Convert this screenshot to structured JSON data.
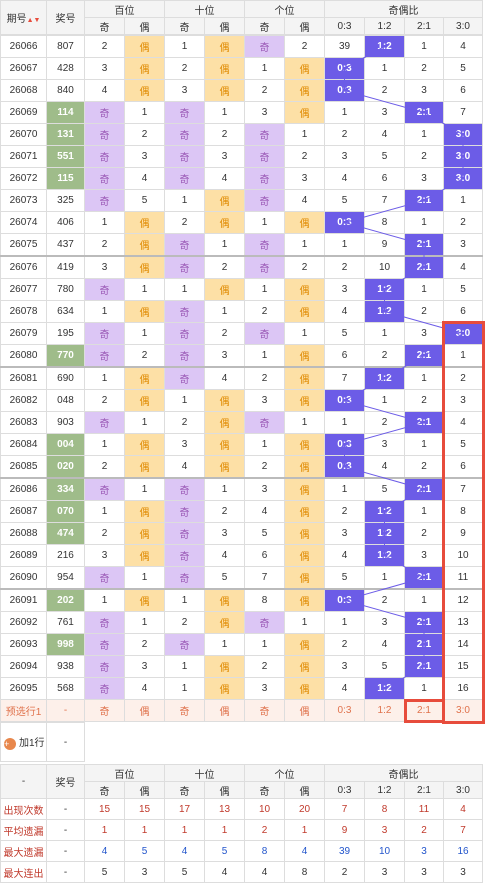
{
  "header": {
    "col_period": "期号",
    "sort_icon": "▲▼",
    "col_prize": "奖号",
    "groups": [
      "百位",
      "十位",
      "个位",
      "奇偶比"
    ],
    "sub": [
      "奇",
      "偶"
    ],
    "ratio": [
      "0:3",
      "1:2",
      "2:1",
      "3:0"
    ]
  },
  "rows": [
    {
      "p": "26066",
      "n": "807",
      "hl": false,
      "pos": [
        [
          "2",
          "偶"
        ],
        [
          "1",
          "偶"
        ],
        [
          "奇",
          "2"
        ]
      ],
      "ratio": [
        "39",
        "1:2",
        "1",
        "4"
      ],
      "ri": 1
    },
    {
      "p": "26067",
      "n": "428",
      "hl": false,
      "pos": [
        [
          "3",
          "偶"
        ],
        [
          "2",
          "偶"
        ],
        [
          "1",
          "偶"
        ]
      ],
      "ratio": [
        "0:3",
        "1",
        "2",
        "5"
      ],
      "ri": 0
    },
    {
      "p": "26068",
      "n": "840",
      "hl": false,
      "pos": [
        [
          "4",
          "偶"
        ],
        [
          "3",
          "偶"
        ],
        [
          "2",
          "偶"
        ]
      ],
      "ratio": [
        "0:3",
        "2",
        "3",
        "6"
      ],
      "ri": 0
    },
    {
      "p": "26069",
      "n": "114",
      "hl": true,
      "pos": [
        [
          "奇",
          "1"
        ],
        [
          "奇",
          "1"
        ],
        [
          "3",
          "偶"
        ]
      ],
      "ratio": [
        "1",
        "3",
        "2:1",
        "7"
      ],
      "ri": 2
    },
    {
      "p": "26070",
      "n": "131",
      "hl": true,
      "pos": [
        [
          "奇",
          "2"
        ],
        [
          "奇",
          "2"
        ],
        [
          "奇",
          "1"
        ]
      ],
      "ratio": [
        "2",
        "4",
        "1",
        "3:0"
      ],
      "ri": 3
    },
    {
      "p": "26071",
      "n": "551",
      "hl": true,
      "pos": [
        [
          "奇",
          "3"
        ],
        [
          "奇",
          "3"
        ],
        [
          "奇",
          "2"
        ]
      ],
      "ratio": [
        "3",
        "5",
        "2",
        "3:0"
      ],
      "ri": 3
    },
    {
      "p": "26072",
      "n": "115",
      "hl": true,
      "pos": [
        [
          "奇",
          "4"
        ],
        [
          "奇",
          "4"
        ],
        [
          "奇",
          "3"
        ]
      ],
      "ratio": [
        "4",
        "6",
        "3",
        "3:0"
      ],
      "ri": 3
    },
    {
      "p": "26073",
      "n": "325",
      "hl": false,
      "pos": [
        [
          "奇",
          "5"
        ],
        [
          "1",
          "偶"
        ],
        [
          "奇",
          "4"
        ]
      ],
      "ratio": [
        "5",
        "7",
        "2:1",
        "1"
      ],
      "ri": 2
    },
    {
      "p": "26074",
      "n": "406",
      "hl": false,
      "pos": [
        [
          "1",
          "偶"
        ],
        [
          "2",
          "偶"
        ],
        [
          "1",
          "偶"
        ]
      ],
      "ratio": [
        "0:3",
        "8",
        "1",
        "2"
      ],
      "ri": 0
    },
    {
      "p": "26075",
      "n": "437",
      "hl": false,
      "pos": [
        [
          "2",
          "偶"
        ],
        [
          "奇",
          "1"
        ],
        [
          "奇",
          "1"
        ]
      ],
      "ratio": [
        "1",
        "9",
        "2:1",
        "3"
      ],
      "ri": 2
    },
    {
      "p": "26076",
      "n": "419",
      "hl": false,
      "pos": [
        [
          "3",
          "偶"
        ],
        [
          "奇",
          "2"
        ],
        [
          "奇",
          "2"
        ]
      ],
      "ratio": [
        "2",
        "10",
        "2:1",
        "4"
      ],
      "ri": 2
    },
    {
      "p": "26077",
      "n": "780",
      "hl": false,
      "pos": [
        [
          "奇",
          "1"
        ],
        [
          "1",
          "偶"
        ],
        [
          "1",
          "偶"
        ]
      ],
      "ratio": [
        "3",
        "1:2",
        "1",
        "5"
      ],
      "ri": 1
    },
    {
      "p": "26078",
      "n": "634",
      "hl": false,
      "pos": [
        [
          "1",
          "偶"
        ],
        [
          "奇",
          "1"
        ],
        [
          "2",
          "偶"
        ]
      ],
      "ratio": [
        "4",
        "1:2",
        "2",
        "6"
      ],
      "ri": 1
    },
    {
      "p": "26079",
      "n": "195",
      "hl": false,
      "pos": [
        [
          "奇",
          "1"
        ],
        [
          "奇",
          "2"
        ],
        [
          "奇",
          "1"
        ]
      ],
      "ratio": [
        "5",
        "1",
        "3",
        "3:0"
      ],
      "ri": 3
    },
    {
      "p": "26080",
      "n": "770",
      "hl": true,
      "pos": [
        [
          "奇",
          "2"
        ],
        [
          "奇",
          "3"
        ],
        [
          "1",
          "偶"
        ]
      ],
      "ratio": [
        "6",
        "2",
        "2:1",
        "1"
      ],
      "ri": 2
    },
    {
      "p": "26081",
      "n": "690",
      "hl": false,
      "pos": [
        [
          "1",
          "偶"
        ],
        [
          "奇",
          "4"
        ],
        [
          "2",
          "偶"
        ]
      ],
      "ratio": [
        "7",
        "1:2",
        "1",
        "2"
      ],
      "ri": 1
    },
    {
      "p": "26082",
      "n": "048",
      "hl": false,
      "pos": [
        [
          "2",
          "偶"
        ],
        [
          "1",
          "偶"
        ],
        [
          "3",
          "偶"
        ]
      ],
      "ratio": [
        "0:3",
        "1",
        "2",
        "3"
      ],
      "ri": 0
    },
    {
      "p": "26083",
      "n": "903",
      "hl": false,
      "pos": [
        [
          "奇",
          "1"
        ],
        [
          "2",
          "偶"
        ],
        [
          "奇",
          "1"
        ]
      ],
      "ratio": [
        "1",
        "2",
        "2:1",
        "4"
      ],
      "ri": 2
    },
    {
      "p": "26084",
      "n": "004",
      "hl": true,
      "pos": [
        [
          "1",
          "偶"
        ],
        [
          "3",
          "偶"
        ],
        [
          "1",
          "偶"
        ]
      ],
      "ratio": [
        "0:3",
        "3",
        "1",
        "5"
      ],
      "ri": 0
    },
    {
      "p": "26085",
      "n": "020",
      "hl": true,
      "pos": [
        [
          "2",
          "偶"
        ],
        [
          "4",
          "偶"
        ],
        [
          "2",
          "偶"
        ]
      ],
      "ratio": [
        "0:3",
        "4",
        "2",
        "6"
      ],
      "ri": 0
    },
    {
      "p": "26086",
      "n": "334",
      "hl": true,
      "pos": [
        [
          "奇",
          "1"
        ],
        [
          "奇",
          "1"
        ],
        [
          "3",
          "偶"
        ]
      ],
      "ratio": [
        "1",
        "5",
        "2:1",
        "7"
      ],
      "ri": 2
    },
    {
      "p": "26087",
      "n": "070",
      "hl": true,
      "pos": [
        [
          "1",
          "偶"
        ],
        [
          "奇",
          "2"
        ],
        [
          "4",
          "偶"
        ]
      ],
      "ratio": [
        "2",
        "1:2",
        "1",
        "8"
      ],
      "ri": 1
    },
    {
      "p": "26088",
      "n": "474",
      "hl": true,
      "pos": [
        [
          "2",
          "偶"
        ],
        [
          "奇",
          "3"
        ],
        [
          "5",
          "偶"
        ]
      ],
      "ratio": [
        "3",
        "1:2",
        "2",
        "9"
      ],
      "ri": 1
    },
    {
      "p": "26089",
      "n": "216",
      "hl": false,
      "pos": [
        [
          "3",
          "偶"
        ],
        [
          "奇",
          "4"
        ],
        [
          "6",
          "偶"
        ]
      ],
      "ratio": [
        "4",
        "1:2",
        "3",
        "10"
      ],
      "ri": 1
    },
    {
      "p": "26090",
      "n": "954",
      "hl": false,
      "pos": [
        [
          "奇",
          "1"
        ],
        [
          "奇",
          "5"
        ],
        [
          "7",
          "偶"
        ]
      ],
      "ratio": [
        "5",
        "1",
        "2:1",
        "11"
      ],
      "ri": 2
    },
    {
      "p": "26091",
      "n": "202",
      "hl": true,
      "pos": [
        [
          "1",
          "偶"
        ],
        [
          "1",
          "偶"
        ],
        [
          "8",
          "偶"
        ]
      ],
      "ratio": [
        "0:3",
        "2",
        "1",
        "12"
      ],
      "ri": 0
    },
    {
      "p": "26092",
      "n": "761",
      "hl": false,
      "pos": [
        [
          "奇",
          "1"
        ],
        [
          "2",
          "偶"
        ],
        [
          "奇",
          "1"
        ]
      ],
      "ratio": [
        "1",
        "3",
        "2:1",
        "13"
      ],
      "ri": 2
    },
    {
      "p": "26093",
      "n": "998",
      "hl": true,
      "pos": [
        [
          "奇",
          "2"
        ],
        [
          "奇",
          "1"
        ],
        [
          "1",
          "偶"
        ]
      ],
      "ratio": [
        "2",
        "4",
        "2:1",
        "14"
      ],
      "ri": 2
    },
    {
      "p": "26094",
      "n": "938",
      "hl": false,
      "pos": [
        [
          "奇",
          "3"
        ],
        [
          "1",
          "偶"
        ],
        [
          "2",
          "偶"
        ]
      ],
      "ratio": [
        "3",
        "5",
        "2:1",
        "15"
      ],
      "ri": 2
    },
    {
      "p": "26095",
      "n": "568",
      "hl": false,
      "pos": [
        [
          "奇",
          "4"
        ],
        [
          "1",
          "偶"
        ],
        [
          "3",
          "偶"
        ]
      ],
      "ratio": [
        "4",
        "1:2",
        "1",
        "16"
      ],
      "ri": 1
    }
  ],
  "preselect": {
    "label": "预选行1",
    "dash": "-",
    "cells": [
      "奇",
      "偶",
      "奇",
      "偶",
      "奇",
      "偶",
      "0:3",
      "1:2",
      "2:1",
      "3:0"
    ]
  },
  "add_row": {
    "icon": "+",
    "label": "加1行",
    "dash": "-"
  },
  "footer_header": {
    "dash": "-",
    "col_prize": "奖号"
  },
  "stats": [
    {
      "label": "出现次数",
      "dash": "-",
      "cls": "v-red",
      "vals": [
        "15",
        "15",
        "17",
        "13",
        "10",
        "20",
        "7",
        "8",
        "11",
        "4"
      ]
    },
    {
      "label": "平均遗漏",
      "dash": "-",
      "cls": "v-red",
      "vals": [
        "1",
        "1",
        "1",
        "1",
        "2",
        "1",
        "9",
        "3",
        "2",
        "7"
      ]
    },
    {
      "label": "最大遗漏",
      "dash": "-",
      "cls": "v-blue",
      "vals": [
        "4",
        "5",
        "4",
        "5",
        "8",
        "4",
        "39",
        "10",
        "3",
        "16"
      ]
    },
    {
      "label": "最大连出",
      "dash": "-",
      "cls": "v-dark",
      "vals": [
        "5",
        "3",
        "5",
        "4",
        "4",
        "8",
        "2",
        "3",
        "3",
        "3"
      ]
    }
  ],
  "colors": {
    "odd": "#dcc6f5",
    "even": "#fde0a6",
    "hit": "#6c5ce7",
    "highlight": "#9fbc8a",
    "redbox": "#e74c3c"
  }
}
